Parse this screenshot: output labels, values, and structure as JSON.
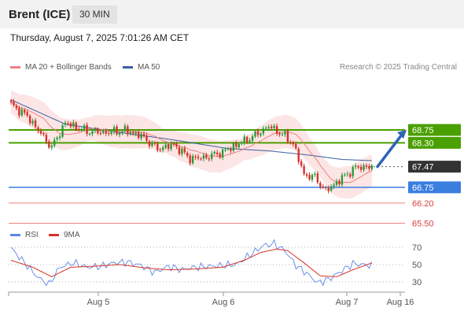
{
  "header": {
    "instrument": "Brent (ICE)",
    "interval": "30 MIN",
    "datetime": "Thursday, August 7, 2025 7:01:26 AM CET"
  },
  "credit": "Research © 2025 Trading Central",
  "colors": {
    "up": "#2a9a3a",
    "down": "#d93025",
    "ma20": "#f08080",
    "ma50": "#3b5fa0",
    "bb_fill": "#fbe0e0",
    "green_level": "#4aa000",
    "blue_level": "#3a7ee0",
    "red_level": "#f08080",
    "current": "#333333",
    "arrow": "#2f63b5",
    "rsi": "#5b86e5",
    "rsi_ma": "#d93025"
  },
  "chart_data": [
    {
      "type": "candlestick",
      "legend": [
        {
          "label": "MA 20 + Bollinger Bands",
          "color": "#f08080"
        },
        {
          "label": "MA 50",
          "color": "#3b5fa0"
        }
      ],
      "legend_placement": "top-left",
      "x_ticks": [
        "Aug 5",
        "Aug 6",
        "Aug 7",
        "Aug 16"
      ],
      "ylim": [
        65.32,
        70.12
      ],
      "price_levels": [
        {
          "value": 68.75,
          "label": "68.75",
          "kind": "resistance",
          "color": "#4aa000"
        },
        {
          "value": 68.3,
          "label": "68.30",
          "kind": "resistance",
          "color": "#4aa000"
        },
        {
          "value": 67.47,
          "label": "67.47",
          "kind": "current",
          "color": "#333333"
        },
        {
          "value": 66.75,
          "label": "66.75",
          "kind": "pivot",
          "color": "#3a7ee0"
        },
        {
          "value": 66.2,
          "label": "66.20",
          "kind": "support",
          "color": "#f08080"
        },
        {
          "value": 65.5,
          "label": "65.50",
          "kind": "support",
          "color": "#f08080"
        }
      ],
      "anchors": [
        [
          0,
          69.63
        ],
        [
          6,
          69.23
        ],
        [
          11,
          68.62
        ],
        [
          15,
          68.14
        ],
        [
          20,
          69.0
        ],
        [
          28,
          68.7
        ],
        [
          35,
          68.66
        ],
        [
          42,
          68.73
        ],
        [
          48,
          68.55
        ],
        [
          54,
          68.09
        ],
        [
          60,
          68.23
        ],
        [
          66,
          67.75
        ],
        [
          72,
          67.8
        ],
        [
          78,
          67.98
        ],
        [
          84,
          68.27
        ],
        [
          90,
          68.56
        ],
        [
          95,
          68.88
        ],
        [
          100,
          68.6
        ],
        [
          104,
          68.27
        ],
        [
          108,
          67.19
        ],
        [
          112,
          67.1
        ],
        [
          116,
          66.62
        ],
        [
          122,
          67.07
        ],
        [
          127,
          67.44
        ],
        [
          133,
          67.47
        ]
      ],
      "ma50_anchors": [
        [
          0,
          69.8
        ],
        [
          20,
          68.95
        ],
        [
          40,
          68.66
        ],
        [
          60,
          68.4
        ],
        [
          80,
          68.1
        ],
        [
          95,
          68.02
        ],
        [
          110,
          67.87
        ],
        [
          122,
          67.72
        ],
        [
          133,
          67.68
        ]
      ],
      "bb_half_width": 0.53,
      "forecast_arrow": {
        "from": 67.47,
        "to": 68.75
      }
    },
    {
      "type": "line",
      "legend": [
        {
          "label": "RSI",
          "color": "#5b86e5"
        },
        {
          "label": "9MA",
          "color": "#d93025"
        }
      ],
      "ylim": [
        20,
        80
      ],
      "y_ticks": [
        30,
        50,
        70
      ],
      "series": [
        {
          "name": "RSI",
          "anchors": [
            [
              0,
              69
            ],
            [
              5,
              52
            ],
            [
              10,
              35
            ],
            [
              14,
              27
            ],
            [
              18,
              47
            ],
            [
              23,
              52
            ],
            [
              28,
              47
            ],
            [
              33,
              48
            ],
            [
              38,
              52
            ],
            [
              43,
              53
            ],
            [
              48,
              49
            ],
            [
              53,
              41
            ],
            [
              58,
              48
            ],
            [
              63,
              44
            ],
            [
              68,
              47
            ],
            [
              73,
              48
            ],
            [
              78,
              49
            ],
            [
              83,
              50
            ],
            [
              88,
              61
            ],
            [
              93,
              72
            ],
            [
              97,
              74
            ],
            [
              101,
              66
            ],
            [
              105,
              49
            ],
            [
              109,
              40
            ],
            [
              113,
              29
            ],
            [
              117,
              33
            ],
            [
              121,
              41
            ],
            [
              126,
              51
            ],
            [
              133,
              49
            ]
          ]
        },
        {
          "name": "9MA",
          "anchors": [
            [
              0,
              55
            ],
            [
              8,
              47
            ],
            [
              15,
              36
            ],
            [
              22,
              47
            ],
            [
              30,
              48
            ],
            [
              40,
              50
            ],
            [
              50,
              46
            ],
            [
              58,
              44
            ],
            [
              68,
              45
            ],
            [
              78,
              47
            ],
            [
              86,
              55
            ],
            [
              92,
              64
            ],
            [
              98,
              68
            ],
            [
              102,
              66
            ],
            [
              108,
              52
            ],
            [
              114,
              37
            ],
            [
              120,
              36
            ],
            [
              126,
              44
            ],
            [
              133,
              52
            ]
          ]
        }
      ]
    }
  ]
}
